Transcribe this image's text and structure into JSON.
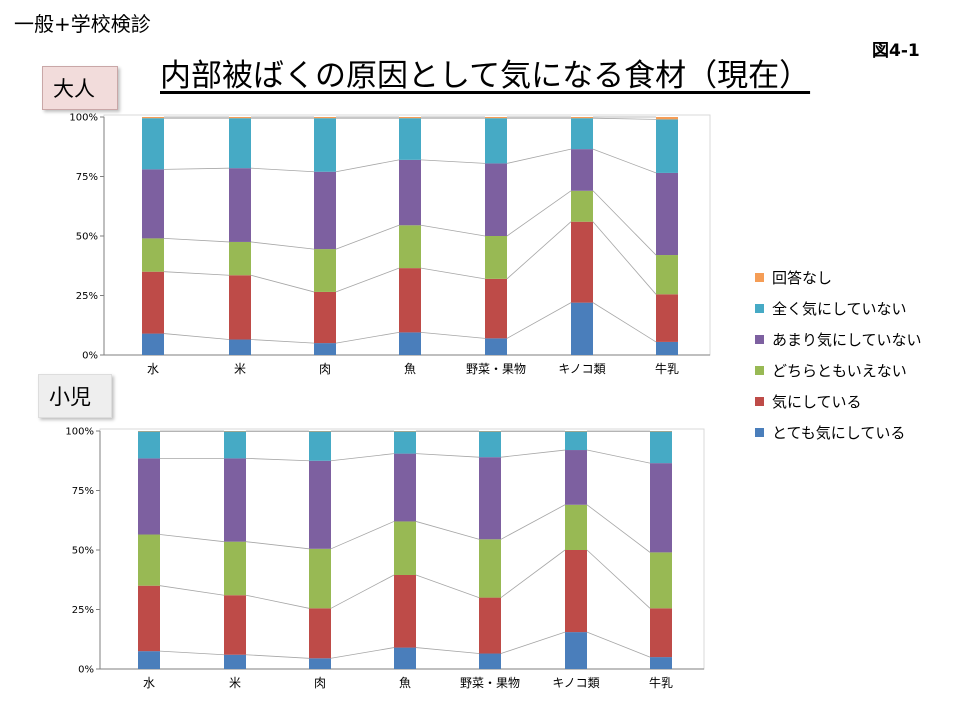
{
  "header": {
    "top_left": "一般+学校検診",
    "figure_label": "図4-1",
    "title": "内部被ばくの原因として気になる食材（現在）"
  },
  "groups": {
    "adult": "大人",
    "child": "小児"
  },
  "colors": {
    "とても気にしている": "#4a7ebb",
    "気にしている": "#be4b48",
    "どちらともいえない": "#98b954",
    "あまり気にしていない": "#7d60a0",
    "全く気にしていない": "#46aac5",
    "回答なし": "#f59d56"
  },
  "legend": [
    "回答なし",
    "全く気にしていない",
    "あまり気にしていない",
    "どちらともいえない",
    "気にしている",
    "とても気にしている"
  ],
  "chart_data": [
    {
      "type": "bar",
      "stacked": "percent",
      "group": "大人",
      "categories": [
        "水",
        "米",
        "肉",
        "魚",
        "野菜・果物",
        "キノコ類",
        "牛乳"
      ],
      "ylim": [
        0,
        100
      ],
      "yticks": [
        "0%",
        "25%",
        "50%",
        "75%",
        "100%"
      ],
      "series": [
        {
          "name": "とても気にしている",
          "values": [
            9,
            6.5,
            5,
            9.5,
            7,
            22,
            5.5
          ]
        },
        {
          "name": "気にしている",
          "values": [
            26,
            27,
            21.5,
            27,
            25,
            34,
            20
          ]
        },
        {
          "name": "どちらともいえない",
          "values": [
            14,
            14,
            18,
            18,
            18,
            13,
            16.5
          ]
        },
        {
          "name": "あまり気にしていない",
          "values": [
            29,
            31,
            32.5,
            27.5,
            30.5,
            17.5,
            34.5
          ]
        },
        {
          "name": "全く気にしていない",
          "values": [
            21.5,
            21,
            22.5,
            17.5,
            19,
            13,
            22.5
          ]
        },
        {
          "name": "回答なし",
          "values": [
            0.5,
            0.5,
            0.5,
            0.5,
            0.5,
            0.5,
            1
          ]
        }
      ]
    },
    {
      "type": "bar",
      "stacked": "percent",
      "group": "小児",
      "categories": [
        "水",
        "米",
        "肉",
        "魚",
        "野菜・果物",
        "キノコ類",
        "牛乳"
      ],
      "ylim": [
        0,
        100
      ],
      "yticks": [
        "0%",
        "25%",
        "50%",
        "75%",
        "100%"
      ],
      "series": [
        {
          "name": "とても気にしている",
          "values": [
            7.5,
            6,
            4.5,
            9,
            6.5,
            15.5,
            5
          ]
        },
        {
          "name": "気にしている",
          "values": [
            27.5,
            25,
            21,
            30.5,
            23.5,
            34.5,
            20.5
          ]
        },
        {
          "name": "どちらともいえない",
          "values": [
            21.5,
            22.5,
            25,
            22.5,
            24.5,
            19,
            23.5
          ]
        },
        {
          "name": "あまり気にしていない",
          "values": [
            32,
            35,
            37,
            28.5,
            34.5,
            23,
            37.5
          ]
        },
        {
          "name": "全く気にしていない",
          "values": [
            11.3,
            11.3,
            12.3,
            9.3,
            10.8,
            7.8,
            13.3
          ]
        },
        {
          "name": "回答なし",
          "values": [
            0.2,
            0.2,
            0.2,
            0.2,
            0.2,
            0.2,
            0.2
          ]
        }
      ]
    }
  ]
}
